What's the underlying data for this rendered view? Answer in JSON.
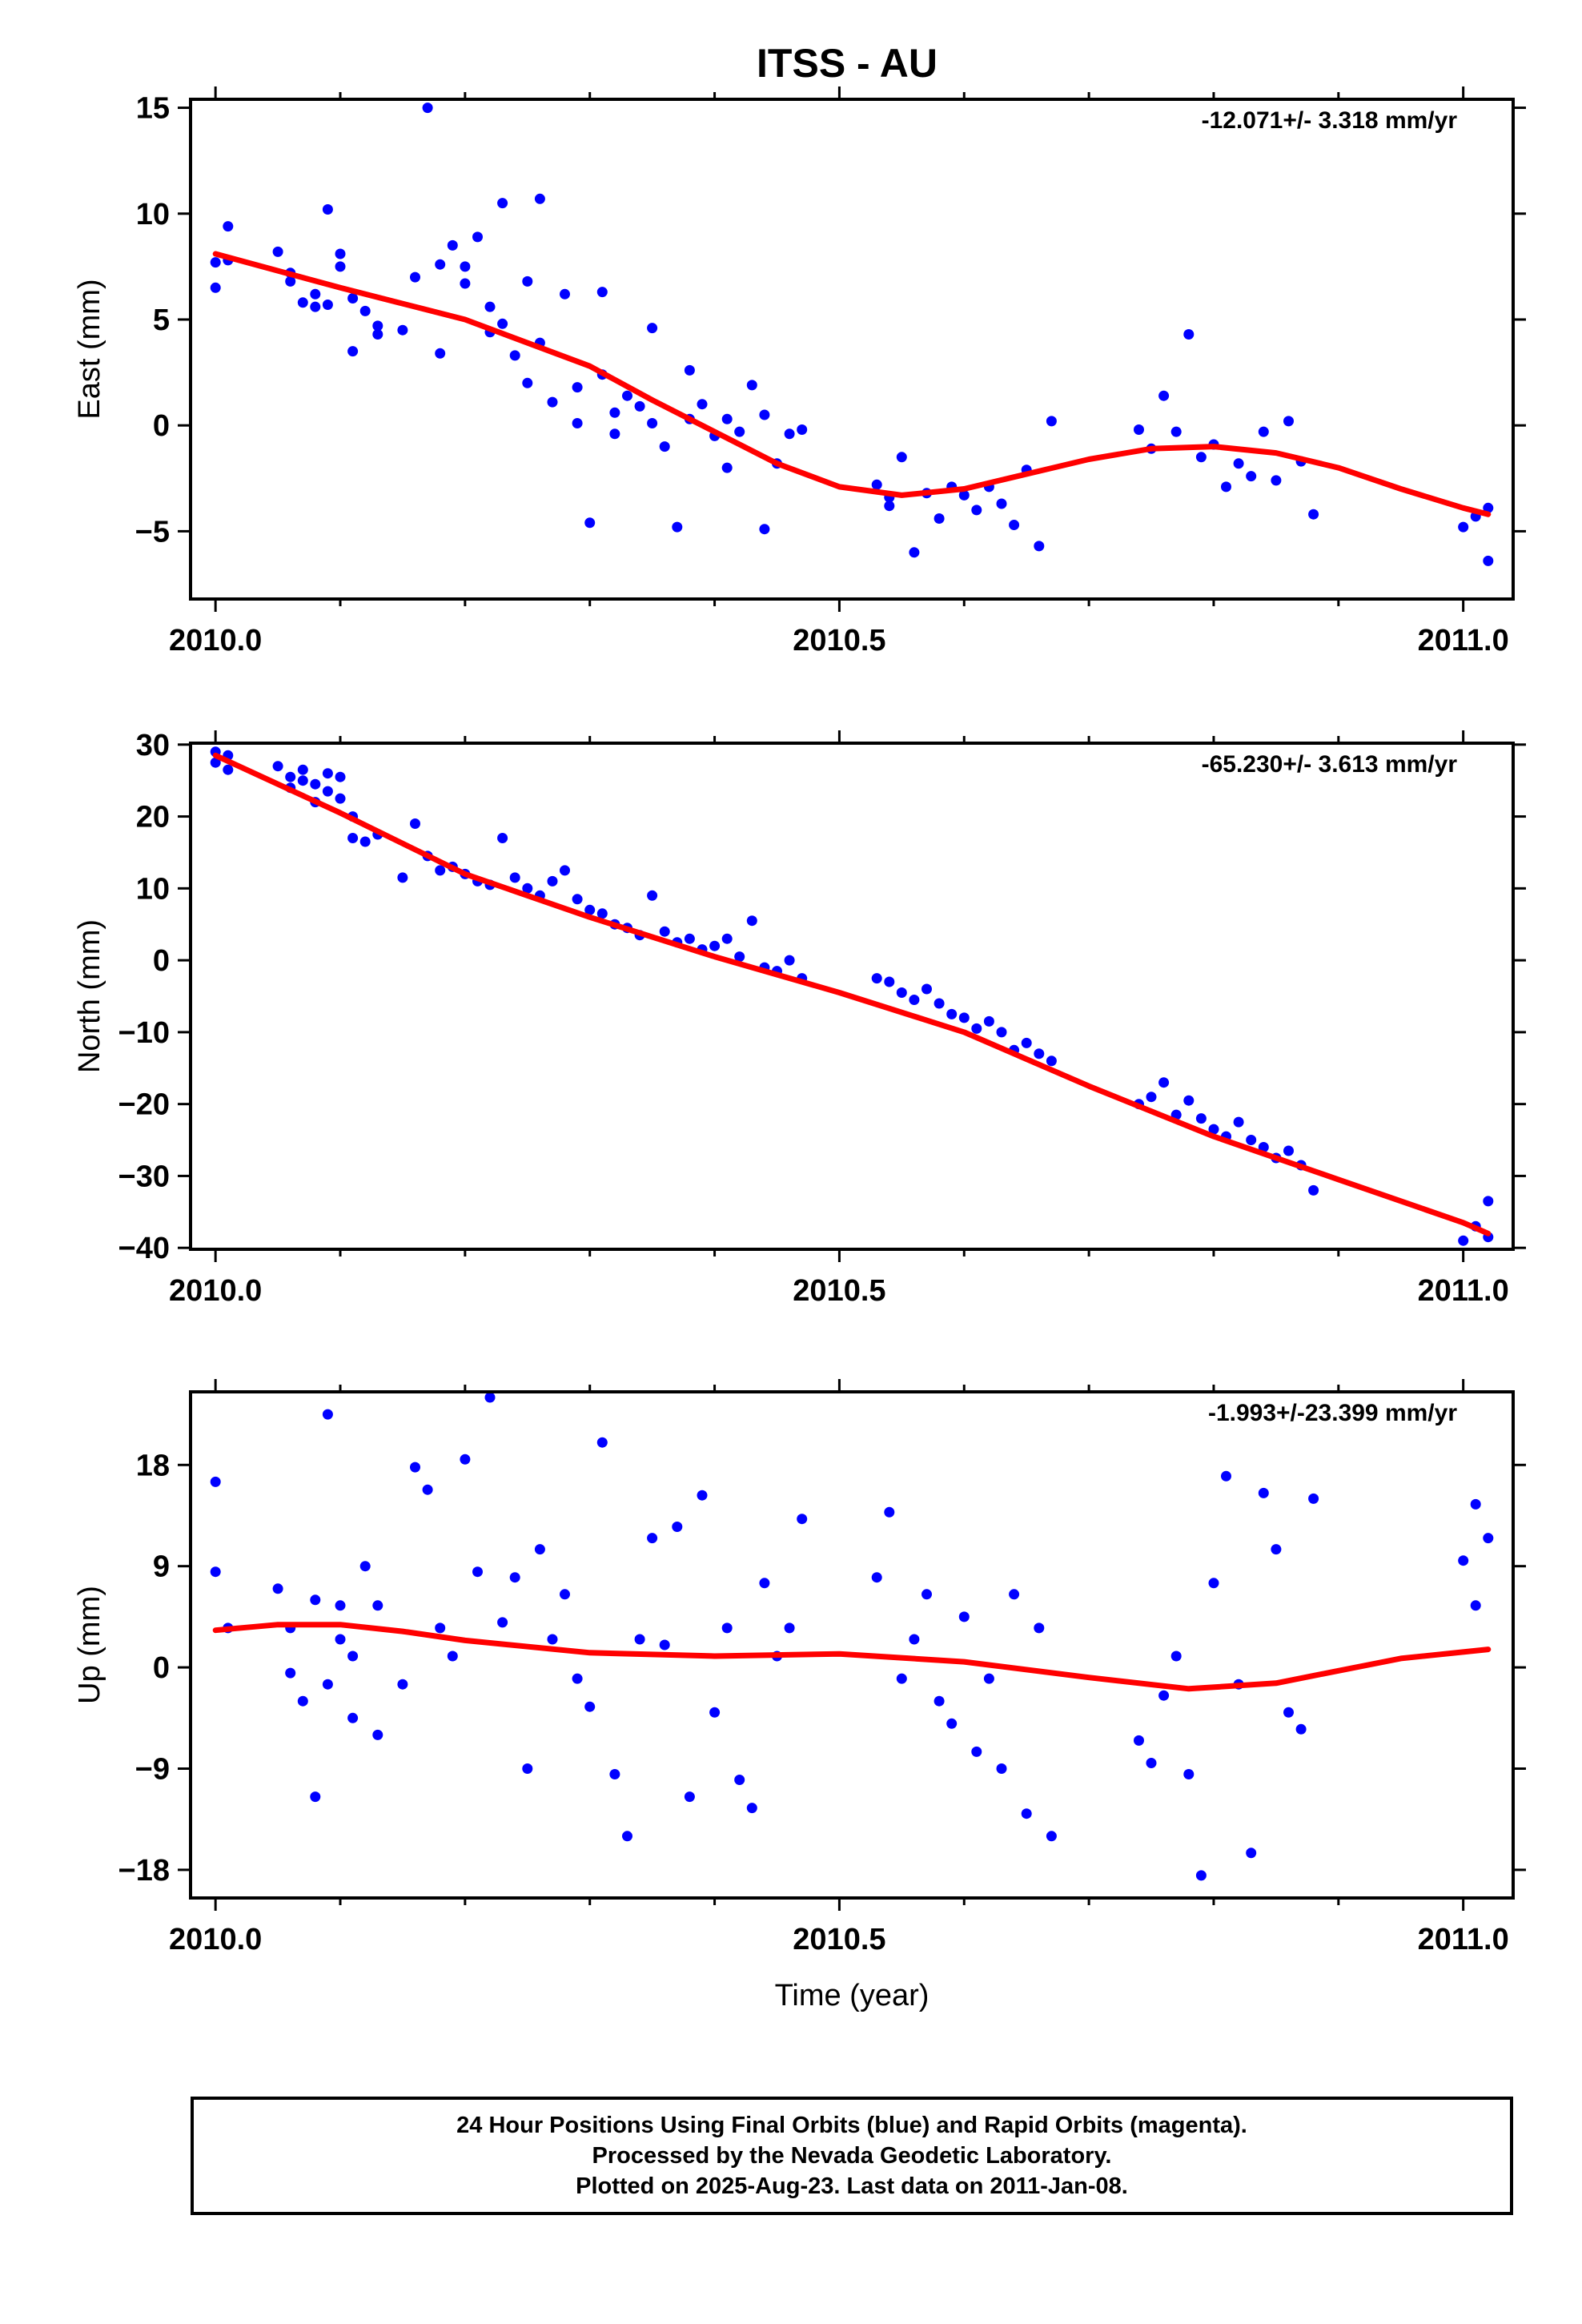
{
  "title": "ITSS - AU",
  "colors": {
    "final_orbits": "#0000ff",
    "fit": "#ff0000",
    "frame": "#000000"
  },
  "chart_data": [
    {
      "type": "scatter",
      "ylabel": "East (mm)",
      "rate_label": "-12.071+/- 3.318 mm/yr",
      "xlim": [
        2009.98,
        2011.04
      ],
      "ylim": [
        -8.2,
        15.4
      ],
      "yticks": [
        -5,
        0,
        5,
        10,
        15
      ],
      "ytick_labels": [
        "−5",
        "0",
        "5",
        "10",
        "15"
      ],
      "xticks": [
        2010.0,
        2010.5,
        2011.0
      ],
      "xtick_labels": [
        "2010.0",
        "2010.5",
        "2011.0"
      ],
      "fit_curve": {
        "x": [
          2010.0,
          2010.1,
          2010.2,
          2010.3,
          2010.35,
          2010.4,
          2010.45,
          2010.5,
          2010.55,
          2010.6,
          2010.65,
          2010.7,
          2010.75,
          2010.8,
          2010.85,
          2010.9,
          2010.95,
          2011.0,
          2011.02
        ],
        "y": [
          8.1,
          6.5,
          5.0,
          2.8,
          1.2,
          -0.3,
          -1.8,
          -2.9,
          -3.3,
          -3.0,
          -2.3,
          -1.6,
          -1.1,
          -1.0,
          -1.3,
          -2.0,
          -3.0,
          -3.9,
          -4.2
        ]
      },
      "points": {
        "x": [
          2010.0,
          2010.0,
          2010.01,
          2010.01,
          2010.05,
          2010.06,
          2010.06,
          2010.07,
          2010.08,
          2010.08,
          2010.09,
          2010.09,
          2010.1,
          2010.1,
          2010.11,
          2010.11,
          2010.12,
          2010.13,
          2010.13,
          2010.15,
          2010.16,
          2010.17,
          2010.18,
          2010.18,
          2010.19,
          2010.2,
          2010.2,
          2010.21,
          2010.22,
          2010.22,
          2010.23,
          2010.23,
          2010.24,
          2010.25,
          2010.25,
          2010.26,
          2010.26,
          2010.27,
          2010.28,
          2010.29,
          2010.29,
          2010.3,
          2010.31,
          2010.31,
          2010.32,
          2010.32,
          2010.33,
          2010.34,
          2010.35,
          2010.35,
          2010.36,
          2010.37,
          2010.38,
          2010.38,
          2010.39,
          2010.4,
          2010.41,
          2010.41,
          2010.42,
          2010.43,
          2010.44,
          2010.44,
          2010.45,
          2010.46,
          2010.47,
          2010.53,
          2010.54,
          2010.54,
          2010.55,
          2010.56,
          2010.57,
          2010.58,
          2010.59,
          2010.6,
          2010.61,
          2010.62,
          2010.63,
          2010.64,
          2010.65,
          2010.66,
          2010.67,
          2010.74,
          2010.75,
          2010.76,
          2010.77,
          2010.78,
          2010.79,
          2010.8,
          2010.81,
          2010.82,
          2010.83,
          2010.84,
          2010.85,
          2010.86,
          2010.87,
          2010.88,
          2011.0,
          2011.01,
          2011.02,
          2011.02
        ],
        "y": [
          6.5,
          7.7,
          9.4,
          7.8,
          8.2,
          6.8,
          7.2,
          5.8,
          6.2,
          5.6,
          10.2,
          5.7,
          7.5,
          8.1,
          6.0,
          3.5,
          5.4,
          4.3,
          4.7,
          4.5,
          7.0,
          15.0,
          3.4,
          7.6,
          8.5,
          6.7,
          7.5,
          8.9,
          5.6,
          4.4,
          10.5,
          4.8,
          3.3,
          2.0,
          6.8,
          10.7,
          3.9,
          1.1,
          6.2,
          0.1,
          1.8,
          -4.6,
          2.4,
          6.3,
          0.6,
          -0.4,
          1.4,
          0.9,
          0.1,
          4.6,
          -1.0,
          -4.8,
          2.6,
          0.3,
          1.0,
          -0.5,
          -2.0,
          0.3,
          -0.3,
          1.9,
          0.5,
          -4.9,
          -1.8,
          -0.4,
          -0.2,
          -2.8,
          -3.4,
          -3.8,
          -1.5,
          -6.0,
          -3.2,
          -4.4,
          -2.9,
          -3.3,
          -4.0,
          -2.9,
          -3.7,
          -4.7,
          -2.1,
          -5.7,
          0.2,
          -0.2,
          -1.1,
          1.4,
          -0.3,
          4.3,
          -1.5,
          -0.9,
          -2.9,
          -1.8,
          -2.4,
          -0.3,
          -2.6,
          0.2,
          -1.7,
          -4.2,
          -4.8,
          -4.3,
          -3.9,
          -6.4
        ]
      }
    },
    {
      "type": "scatter",
      "ylabel": "North (mm)",
      "rate_label": "-65.230+/- 3.613 mm/yr",
      "xlim": [
        2009.98,
        2011.04
      ],
      "ylim": [
        -40.2,
        30.2
      ],
      "yticks": [
        -40,
        -30,
        -20,
        -10,
        0,
        10,
        20,
        30
      ],
      "ytick_labels": [
        "−40",
        "−30",
        "−20",
        "−10",
        "0",
        "10",
        "20",
        "30"
      ],
      "xticks": [
        2010.0,
        2010.5,
        2011.0
      ],
      "xtick_labels": [
        "2010.0",
        "2010.5",
        "2011.0"
      ],
      "fit_curve": {
        "x": [
          2010.0,
          2010.1,
          2010.2,
          2010.3,
          2010.4,
          2010.5,
          2010.6,
          2010.7,
          2010.8,
          2010.9,
          2011.0,
          2011.02
        ],
        "y": [
          28.5,
          20.5,
          12.0,
          6.0,
          0.5,
          -4.5,
          -10.0,
          -17.5,
          -24.5,
          -30.5,
          -36.5,
          -38.0
        ]
      },
      "points": {
        "x": [
          2010.0,
          2010.0,
          2010.01,
          2010.01,
          2010.05,
          2010.06,
          2010.06,
          2010.07,
          2010.07,
          2010.08,
          2010.08,
          2010.09,
          2010.09,
          2010.1,
          2010.1,
          2010.11,
          2010.11,
          2010.12,
          2010.13,
          2010.15,
          2010.16,
          2010.17,
          2010.18,
          2010.19,
          2010.2,
          2010.21,
          2010.22,
          2010.23,
          2010.24,
          2010.25,
          2010.26,
          2010.27,
          2010.28,
          2010.29,
          2010.3,
          2010.31,
          2010.32,
          2010.33,
          2010.34,
          2010.35,
          2010.36,
          2010.37,
          2010.38,
          2010.39,
          2010.4,
          2010.41,
          2010.42,
          2010.43,
          2010.44,
          2010.45,
          2010.46,
          2010.47,
          2010.53,
          2010.54,
          2010.55,
          2010.56,
          2010.57,
          2010.58,
          2010.59,
          2010.6,
          2010.61,
          2010.62,
          2010.63,
          2010.64,
          2010.65,
          2010.66,
          2010.67,
          2010.74,
          2010.75,
          2010.76,
          2010.77,
          2010.78,
          2010.79,
          2010.8,
          2010.81,
          2010.82,
          2010.83,
          2010.84,
          2010.85,
          2010.86,
          2010.87,
          2010.88,
          2011.0,
          2011.01,
          2011.02,
          2011.02
        ],
        "y": [
          27.5,
          29.0,
          26.5,
          28.5,
          27.0,
          25.5,
          24.0,
          26.5,
          25.0,
          22.0,
          24.5,
          23.5,
          26.0,
          22.5,
          25.5,
          17.0,
          20.0,
          16.5,
          17.5,
          11.5,
          19.0,
          14.5,
          12.5,
          13.0,
          12.0,
          11.0,
          10.5,
          17.0,
          11.5,
          10.0,
          9.0,
          11.0,
          12.5,
          8.5,
          7.0,
          6.5,
          5.0,
          4.5,
          3.5,
          9.0,
          4.0,
          2.5,
          3.0,
          1.5,
          2.0,
          3.0,
          0.5,
          5.5,
          -1.0,
          -1.5,
          0.0,
          -2.5,
          -2.5,
          -3.0,
          -4.5,
          -5.5,
          -4.0,
          -6.0,
          -7.5,
          -8.0,
          -9.5,
          -8.5,
          -10.0,
          -12.5,
          -11.5,
          -13.0,
          -14.0,
          -20.0,
          -19.0,
          -17.0,
          -21.5,
          -19.5,
          -22.0,
          -23.5,
          -24.5,
          -22.5,
          -25.0,
          -26.0,
          -27.5,
          -26.5,
          -28.5,
          -32.0,
          -39.0,
          -37.0,
          -33.5,
          -38.5
        ]
      }
    },
    {
      "type": "scatter",
      "ylabel": "Up (mm)",
      "xlabel": "Time (year)",
      "rate_label": "-1.993+/-23.399 mm/yr",
      "xlim": [
        2009.98,
        2011.04
      ],
      "ylim": [
        -20.5,
        24.5
      ],
      "yticks": [
        -18,
        -9,
        0,
        9,
        18
      ],
      "ytick_labels": [
        "−18",
        "−9",
        "0",
        "9",
        "18"
      ],
      "xticks": [
        2010.0,
        2010.5,
        2011.0
      ],
      "xtick_labels": [
        "2010.0",
        "2010.5",
        "2011.0"
      ],
      "fit_curve": {
        "x": [
          2010.0,
          2010.05,
          2010.1,
          2010.15,
          2010.2,
          2010.3,
          2010.4,
          2010.5,
          2010.6,
          2010.7,
          2010.78,
          2010.85,
          2010.9,
          2010.95,
          2011.02
        ],
        "y": [
          3.3,
          3.8,
          3.8,
          3.2,
          2.4,
          1.3,
          1.0,
          1.2,
          0.5,
          -0.9,
          -1.9,
          -1.4,
          -0.3,
          0.8,
          1.6
        ]
      },
      "points": {
        "x": [
          2010.0,
          2010.0,
          2010.01,
          2010.05,
          2010.06,
          2010.06,
          2010.07,
          2010.08,
          2010.08,
          2010.09,
          2010.09,
          2010.1,
          2010.1,
          2010.11,
          2010.11,
          2010.12,
          2010.13,
          2010.13,
          2010.15,
          2010.16,
          2010.17,
          2010.18,
          2010.19,
          2010.2,
          2010.21,
          2010.22,
          2010.23,
          2010.24,
          2010.25,
          2010.26,
          2010.27,
          2010.28,
          2010.29,
          2010.3,
          2010.31,
          2010.32,
          2010.33,
          2010.34,
          2010.35,
          2010.36,
          2010.37,
          2010.38,
          2010.39,
          2010.4,
          2010.41,
          2010.42,
          2010.43,
          2010.44,
          2010.45,
          2010.46,
          2010.47,
          2010.53,
          2010.54,
          2010.55,
          2010.56,
          2010.57,
          2010.58,
          2010.59,
          2010.6,
          2010.61,
          2010.62,
          2010.63,
          2010.64,
          2010.65,
          2010.66,
          2010.67,
          2010.74,
          2010.75,
          2010.76,
          2010.77,
          2010.78,
          2010.79,
          2010.8,
          2010.81,
          2010.82,
          2010.83,
          2010.84,
          2010.85,
          2010.86,
          2010.87,
          2010.88,
          2011.0,
          2011.01,
          2011.01,
          2011.02
        ],
        "y": [
          8.5,
          16.5,
          3.5,
          7.0,
          -0.5,
          3.5,
          -3.0,
          -11.5,
          6.0,
          22.5,
          -1.5,
          2.5,
          5.5,
          -4.5,
          1.0,
          9.0,
          -6.0,
          5.5,
          -1.5,
          17.8,
          15.8,
          3.5,
          1.0,
          18.5,
          8.5,
          24.0,
          4.0,
          8.0,
          -9.0,
          10.5,
          2.5,
          6.5,
          -1.0,
          -3.5,
          20.0,
          -9.5,
          -15.0,
          2.5,
          11.5,
          2.0,
          12.5,
          -11.5,
          15.3,
          -4.0,
          3.5,
          -10.0,
          -12.5,
          7.5,
          1.0,
          3.5,
          13.2,
          8.0,
          13.8,
          -1.0,
          2.5,
          6.5,
          -3.0,
          -5.0,
          4.5,
          -7.5,
          -1.0,
          -9.0,
          6.5,
          -13.0,
          3.5,
          -15.0,
          -6.5,
          -8.5,
          -2.5,
          1.0,
          -9.5,
          -18.5,
          7.5,
          17.0,
          -1.5,
          -16.5,
          15.5,
          10.5,
          -4.0,
          -5.5,
          15.0,
          9.5,
          5.5,
          14.5,
          11.5
        ]
      }
    }
  ],
  "caption": {
    "line1": "24 Hour Positions Using Final Orbits (blue) and Rapid Orbits (magenta).",
    "line2": "Processed by the Nevada Geodetic Laboratory.",
    "line3": "Plotted on 2025-Aug-23. Last data on 2011-Jan-08."
  }
}
